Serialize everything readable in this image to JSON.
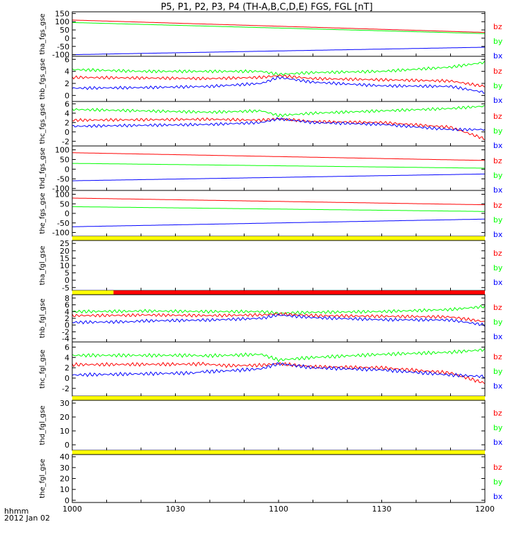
{
  "title": "P5, P1, P2, P3, P4 (TH-A,B,C,D,E) FGS, FGL [nT]",
  "x_axis": {
    "ticks": [
      {
        "label": "1000",
        "t": 0
      },
      {
        "label": "1030",
        "t": 30
      },
      {
        "label": "1100",
        "t": 60
      },
      {
        "label": "1130",
        "t": 90
      },
      {
        "label": "1200",
        "t": 120
      }
    ],
    "label_line1": "hhmm",
    "label_line2": "2012 Jan 02"
  },
  "colors": {
    "bz": "#ff0000",
    "by": "#00ff00",
    "bx": "#0000ff",
    "bar_yellow": "#ffff00",
    "bar_red": "#ff0000"
  },
  "chart_data": [
    {
      "type": "line",
      "ylabel": "tha_fgs_gse",
      "ylim": [
        -110,
        160
      ],
      "ticks": [
        150,
        100,
        50,
        0,
        -50,
        -100
      ],
      "legend": [
        "bz",
        "by",
        "bx"
      ],
      "series": [
        {
          "name": "bz",
          "x": [
            0,
            120
          ],
          "y": [
            110,
            35
          ]
        },
        {
          "name": "by",
          "x": [
            0,
            120
          ],
          "y": [
            95,
            28
          ]
        },
        {
          "name": "bx",
          "x": [
            0,
            120
          ],
          "y": [
            -100,
            -55
          ]
        }
      ]
    },
    {
      "type": "line",
      "ylabel": "thb_fgs_gse",
      "ylim": [
        -1,
        6.5
      ],
      "ticks": [
        6,
        4,
        2,
        0
      ],
      "legend": [
        "bz",
        "by",
        "bx"
      ],
      "series": [
        {
          "name": "by",
          "x": [
            0,
            20,
            40,
            55,
            60,
            70,
            90,
            110,
            120
          ],
          "y": [
            4.3,
            4.0,
            4.0,
            4.0,
            3.5,
            3.8,
            4.0,
            4.7,
            5.5
          ]
        },
        {
          "name": "bz",
          "x": [
            0,
            20,
            40,
            55,
            60,
            70,
            90,
            110,
            120
          ],
          "y": [
            3.0,
            2.9,
            2.8,
            3.0,
            3.3,
            2.8,
            2.6,
            2.4,
            1.5
          ]
        },
        {
          "name": "bx",
          "x": [
            0,
            20,
            40,
            55,
            60,
            70,
            90,
            110,
            120
          ],
          "y": [
            1.2,
            1.3,
            1.5,
            2.0,
            3.0,
            2.2,
            1.6,
            1.5,
            0.5
          ]
        }
      ]
    },
    {
      "type": "line",
      "ylabel": "thc_fgs_gse",
      "ylim": [
        -3,
        6.5
      ],
      "ticks": [
        6,
        4,
        2,
        0,
        -2
      ],
      "legend": [
        "bz",
        "by",
        "bx"
      ],
      "series": [
        {
          "name": "by",
          "x": [
            0,
            20,
            40,
            55,
            60,
            70,
            90,
            110,
            120
          ],
          "y": [
            4.8,
            4.5,
            4.2,
            4.5,
            3.5,
            4.0,
            4.5,
            5.0,
            5.5
          ]
        },
        {
          "name": "bz",
          "x": [
            0,
            20,
            40,
            55,
            60,
            70,
            90,
            110,
            120
          ],
          "y": [
            2.5,
            2.6,
            2.7,
            2.5,
            2.8,
            2.2,
            2.0,
            1.0,
            -1.5
          ]
        },
        {
          "name": "bx",
          "x": [
            0,
            20,
            40,
            55,
            60,
            70,
            90,
            110,
            120
          ],
          "y": [
            1.2,
            1.4,
            1.6,
            2.0,
            2.8,
            2.0,
            1.6,
            0.5,
            0.5
          ]
        }
      ]
    },
    {
      "type": "line",
      "ylabel": "thd_fgs_gse",
      "ylim": [
        -110,
        120
      ],
      "ticks": [
        100,
        50,
        0,
        -50,
        -100
      ],
      "legend": [
        "bz",
        "by",
        "bx"
      ],
      "series": [
        {
          "name": "bz",
          "x": [
            0,
            120
          ],
          "y": [
            85,
            45
          ]
        },
        {
          "name": "by",
          "x": [
            0,
            120
          ],
          "y": [
            30,
            5
          ]
        },
        {
          "name": "bx",
          "x": [
            0,
            120
          ],
          "y": [
            -60,
            -25
          ]
        }
      ]
    },
    {
      "type": "line",
      "ylabel": "the_fgs_gse",
      "ylim": [
        -120,
        120
      ],
      "ticks": [
        100,
        50,
        0,
        -50,
        -100
      ],
      "legend": [
        "bz",
        "by",
        "bx"
      ],
      "series": [
        {
          "name": "bz",
          "x": [
            0,
            120
          ],
          "y": [
            80,
            45
          ]
        },
        {
          "name": "by",
          "x": [
            0,
            120
          ],
          "y": [
            35,
            10
          ]
        },
        {
          "name": "bx",
          "x": [
            0,
            120
          ],
          "y": [
            -70,
            -30
          ]
        }
      ]
    },
    {
      "type": "line",
      "ylabel": "tha_fgl_gse",
      "ylim": [
        -7,
        27
      ],
      "ticks": [
        25,
        20,
        15,
        10,
        5,
        0,
        -5
      ],
      "legend": [
        "bz",
        "by",
        "bx"
      ],
      "series": [],
      "status_bar": [
        {
          "from": 0,
          "to": 120,
          "color": "bar_yellow"
        }
      ]
    },
    {
      "type": "line",
      "ylabel": "thb_fgl_gse",
      "ylim": [
        -5,
        9
      ],
      "ticks": [
        8,
        6,
        4,
        2,
        0,
        -2,
        -4
      ],
      "legend": [
        "bz",
        "by",
        "bx"
      ],
      "status_bar": [
        {
          "from": 0,
          "to": 12,
          "color": "bar_yellow"
        },
        {
          "from": 12,
          "to": 120,
          "color": "bar_red"
        }
      ],
      "series": [
        {
          "name": "by",
          "x": [
            0,
            18,
            19,
            40,
            55,
            60,
            70,
            90,
            110,
            120
          ],
          "y": [
            4.0,
            4.1,
            4.2,
            4.0,
            4.0,
            3.5,
            3.8,
            4.0,
            4.6,
            5.5
          ]
        },
        {
          "name": "bz",
          "x": [
            0,
            18,
            19,
            40,
            55,
            60,
            70,
            90,
            110,
            120
          ],
          "y": [
            2.8,
            2.9,
            3.0,
            2.8,
            3.0,
            3.3,
            2.8,
            2.6,
            2.4,
            1.0
          ]
        },
        {
          "name": "bx",
          "x": [
            0,
            18,
            19,
            40,
            55,
            60,
            70,
            90,
            110,
            120
          ],
          "y": [
            0.8,
            1.0,
            1.2,
            1.5,
            2.0,
            3.0,
            2.2,
            1.6,
            1.5,
            0.0
          ]
        }
      ]
    },
    {
      "type": "line",
      "ylabel": "thc_fgl_gse",
      "ylim": [
        -3.5,
        7
      ],
      "ticks": [
        6,
        4,
        2,
        0,
        -2
      ],
      "legend": [
        "bz",
        "by",
        "bx"
      ],
      "series": [
        {
          "name": "by",
          "x": [
            0,
            36,
            37,
            45,
            55,
            60,
            70,
            90,
            110,
            120
          ],
          "y": [
            4.4,
            4.4,
            4.3,
            4.4,
            4.6,
            3.5,
            4.0,
            4.6,
            5.0,
            5.5
          ]
        },
        {
          "name": "bz",
          "x": [
            0,
            36,
            37,
            45,
            55,
            60,
            70,
            90,
            110,
            120
          ],
          "y": [
            2.6,
            2.7,
            2.8,
            2.4,
            2.5,
            2.8,
            2.2,
            2.0,
            1.0,
            -1.0
          ]
        },
        {
          "name": "bx",
          "x": [
            0,
            36,
            37,
            45,
            55,
            60,
            70,
            90,
            110,
            120
          ],
          "y": [
            0.6,
            1.0,
            1.2,
            1.4,
            1.8,
            2.8,
            2.0,
            1.6,
            0.6,
            0.3
          ]
        }
      ]
    },
    {
      "type": "line",
      "ylabel": "thd_fgl_gse",
      "ylim": [
        -4,
        32
      ],
      "ticks": [
        30,
        20,
        10,
        0
      ],
      "legend": [
        "bz",
        "by",
        "bx"
      ],
      "series": [],
      "status_bar": [
        {
          "from": 0,
          "to": 120,
          "color": "bar_yellow"
        }
      ]
    },
    {
      "type": "line",
      "ylabel": "the_fgl_gse",
      "ylim": [
        -2,
        42
      ],
      "ticks": [
        40,
        30,
        20,
        10,
        0
      ],
      "legend": [
        "bz",
        "by",
        "bx"
      ],
      "series": [],
      "status_bar": [
        {
          "from": 0,
          "to": 120,
          "color": "bar_yellow"
        }
      ]
    }
  ]
}
